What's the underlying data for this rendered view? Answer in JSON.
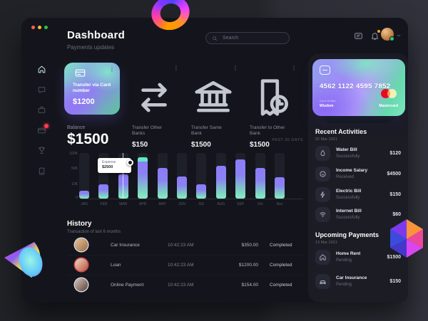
{
  "app": {
    "traffic_lights": [
      "#ff5f57",
      "#febc2e",
      "#28c840"
    ]
  },
  "header": {
    "title": "Dashboard",
    "subtitle": "Payments updates",
    "search_placeholder": "Search",
    "action_icons": [
      "message-icon",
      "bell-icon",
      "avatar",
      "chevron-down-icon"
    ]
  },
  "sidebar": {
    "items": [
      {
        "icon": "home-icon",
        "active": true
      },
      {
        "icon": "chat-icon",
        "active": false
      },
      {
        "icon": "briefcase-icon",
        "active": false
      },
      {
        "icon": "card-icon",
        "active": false,
        "badge": true
      },
      {
        "icon": "trophy-icon",
        "active": false
      },
      {
        "icon": "file-icon",
        "active": false
      }
    ]
  },
  "transfer_cards": [
    {
      "icon": "credit-card-icon",
      "label": "Transfer via Card number",
      "amount": "$1200",
      "featured": true
    },
    {
      "icon": "transfer-arrows-icon",
      "label": "Transfer Other Banks",
      "amount": "$150",
      "featured": false
    },
    {
      "icon": "bank-icon",
      "label": "Transfer Same Bank",
      "amount": "$1500",
      "featured": false
    },
    {
      "icon": "invoice-icon",
      "label": "Transfer to Other Bank",
      "amount": "$1500",
      "featured": false
    }
  ],
  "balance": {
    "label": "Balance",
    "amount": "$1500",
    "period": "PAST 30 DAYS"
  },
  "chart_data": {
    "type": "bar",
    "title": "Balance — past 30 days",
    "categories": [
      "JAN",
      "FEB",
      "MAR",
      "APR",
      "MAY",
      "JUN",
      "JUL",
      "AUG",
      "SEP",
      "Oct",
      "Nov"
    ],
    "values_percent": [
      17,
      31,
      53,
      91,
      67,
      48,
      31,
      72,
      86,
      67,
      47
    ],
    "y_ticks": [
      "100K",
      "50K",
      "10K",
      "0"
    ],
    "xlabel": "",
    "ylabel": "",
    "grid": false,
    "legend": "none",
    "bar_gradient": [
      "#8d7bf9",
      "#8debc9"
    ],
    "top_cap": {
      "category": "APR",
      "color": "#62e9c4"
    },
    "tooltip": {
      "label": "Expense",
      "value": "$2500",
      "category": "MAR"
    }
  },
  "history": {
    "title": "History",
    "subtitle": "Transaction of last 6 months",
    "rows": [
      {
        "name": "Car Insurance",
        "time": "10:42:23 AM",
        "amount": "$350.00",
        "status": "Completed",
        "avatar_ring": "#d9dbe0"
      },
      {
        "name": "Loan",
        "time": "10:42:23 AM",
        "amount": "$1200.00",
        "status": "Completed",
        "avatar_ring": "#e0455a"
      },
      {
        "name": "Online Payment",
        "time": "10:42:23 AM",
        "amount": "$154.00",
        "status": "Completed",
        "avatar_ring": "#d9dbe0"
      }
    ]
  },
  "bank_card": {
    "number": "4562 1122 4595 7852",
    "holder_label": "Card Holder",
    "holder": "Wisdom",
    "brand": "Mastercard",
    "brand_colors": [
      "#eb001b",
      "#f79e1b"
    ]
  },
  "recent_activities": {
    "title": "Recent Activities",
    "date": "02 Mar 2021",
    "items": [
      {
        "icon": "water-icon",
        "name": "Water Bill",
        "status": "Successfully",
        "amount": "$120"
      },
      {
        "icon": "salary-icon",
        "name": "Income Salary",
        "status": "Received",
        "amount": "$4500"
      },
      {
        "icon": "electric-icon",
        "name": "Electric Bill",
        "status": "Successfully",
        "amount": "$150"
      },
      {
        "icon": "internet-icon",
        "name": "Internet Bill",
        "status": "Successfully",
        "amount": "$60"
      }
    ]
  },
  "upcoming_payments": {
    "title": "Upcoming Payments",
    "date": "13 Mar 2021",
    "items": [
      {
        "icon": "home-rent-icon",
        "name": "Home Rent",
        "status": "Pending",
        "amount": "$1500"
      },
      {
        "icon": "car-icon",
        "name": "Car Insurance",
        "status": "Pending",
        "amount": "$150"
      }
    ]
  }
}
